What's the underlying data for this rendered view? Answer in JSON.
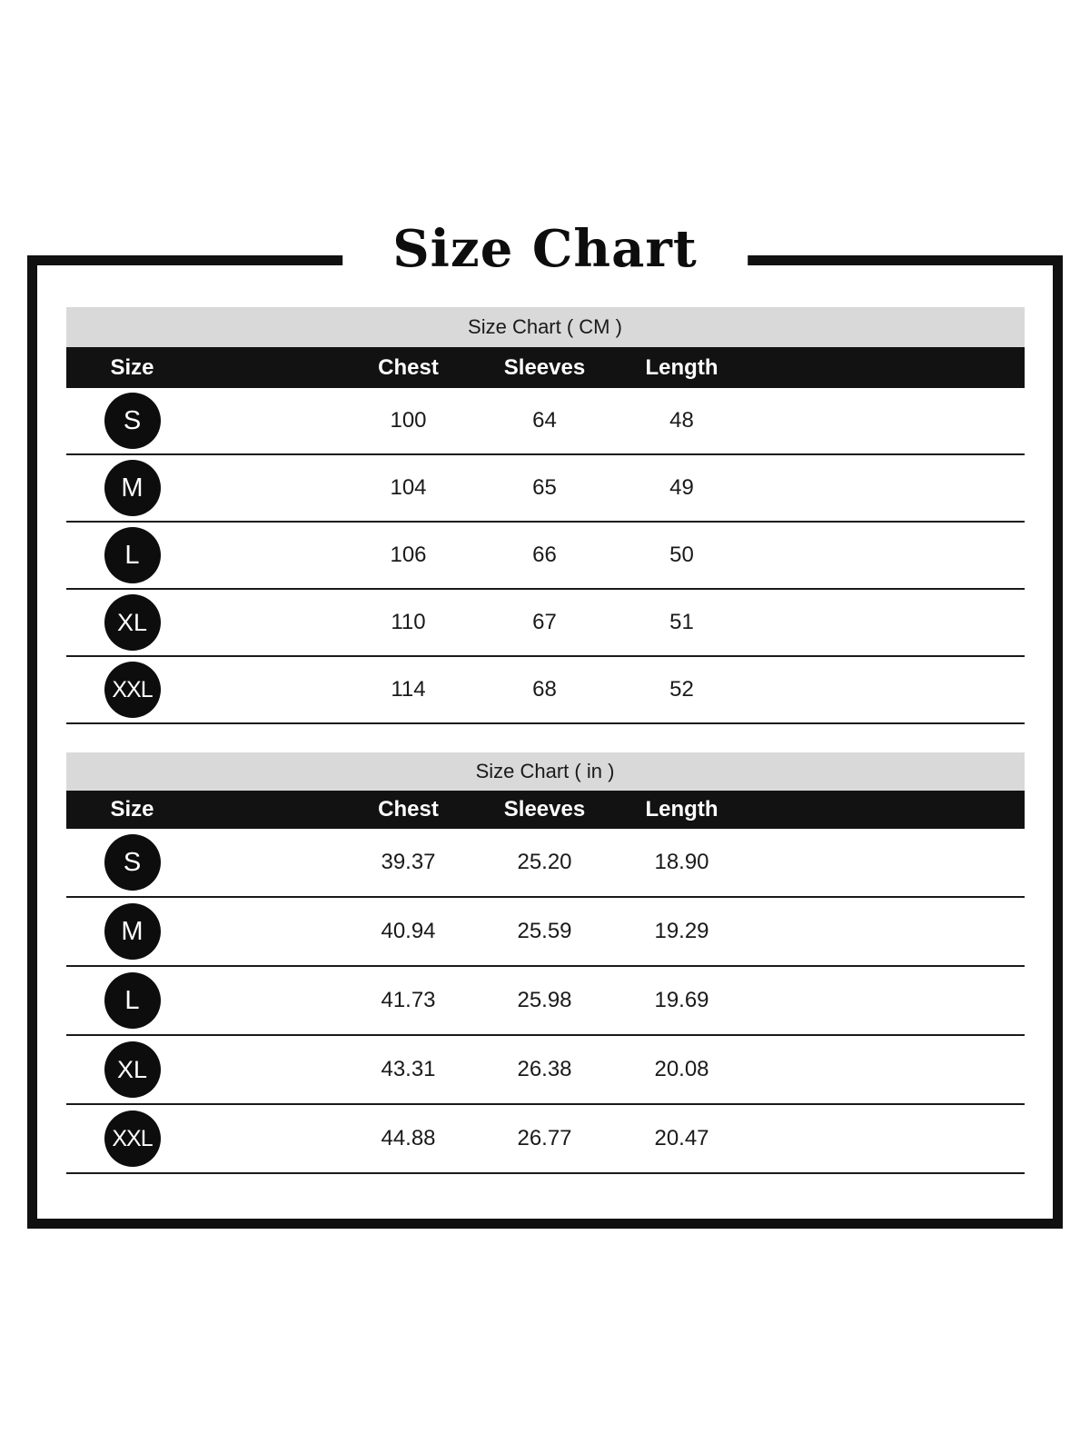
{
  "page": {
    "title": "Size Chart"
  },
  "colors": {
    "table_title_bg": "#d9d9d9",
    "header_row_bg": "#121212",
    "header_row_text": "#ffffff",
    "size_badge_bg": "#0d0d0d",
    "size_badge_text": "#ffffff",
    "row_line": "#1a1a1a",
    "frame_border": "#111111",
    "value_text": "#1a1a1a"
  },
  "chart_data": [
    {
      "type": "table",
      "title": "Size Chart ( CM )",
      "columns": [
        "Size",
        "Chest",
        "Sleeves",
        "Length"
      ],
      "rows": [
        {
          "size": "S",
          "chest": "100",
          "sleeves": "64",
          "length": "48"
        },
        {
          "size": "M",
          "chest": "104",
          "sleeves": "65",
          "length": "49"
        },
        {
          "size": "L",
          "chest": "106",
          "sleeves": "66",
          "length": "50"
        },
        {
          "size": "XL",
          "chest": "110",
          "sleeves": "67",
          "length": "51"
        },
        {
          "size": "XXL",
          "chest": "114",
          "sleeves": "68",
          "length": "52"
        }
      ]
    },
    {
      "type": "table",
      "title": "Size Chart ( in )",
      "columns": [
        "Size",
        "Chest",
        "Sleeves",
        "Length"
      ],
      "rows": [
        {
          "size": "S",
          "chest": "39.37",
          "sleeves": "25.20",
          "length": "18.90"
        },
        {
          "size": "M",
          "chest": "40.94",
          "sleeves": "25.59",
          "length": "19.29"
        },
        {
          "size": "L",
          "chest": "41.73",
          "sleeves": "25.98",
          "length": "19.69"
        },
        {
          "size": "XL",
          "chest": "43.31",
          "sleeves": "26.38",
          "length": "20.08"
        },
        {
          "size": "XXL",
          "chest": "44.88",
          "sleeves": "26.77",
          "length": "20.47"
        }
      ]
    }
  ]
}
